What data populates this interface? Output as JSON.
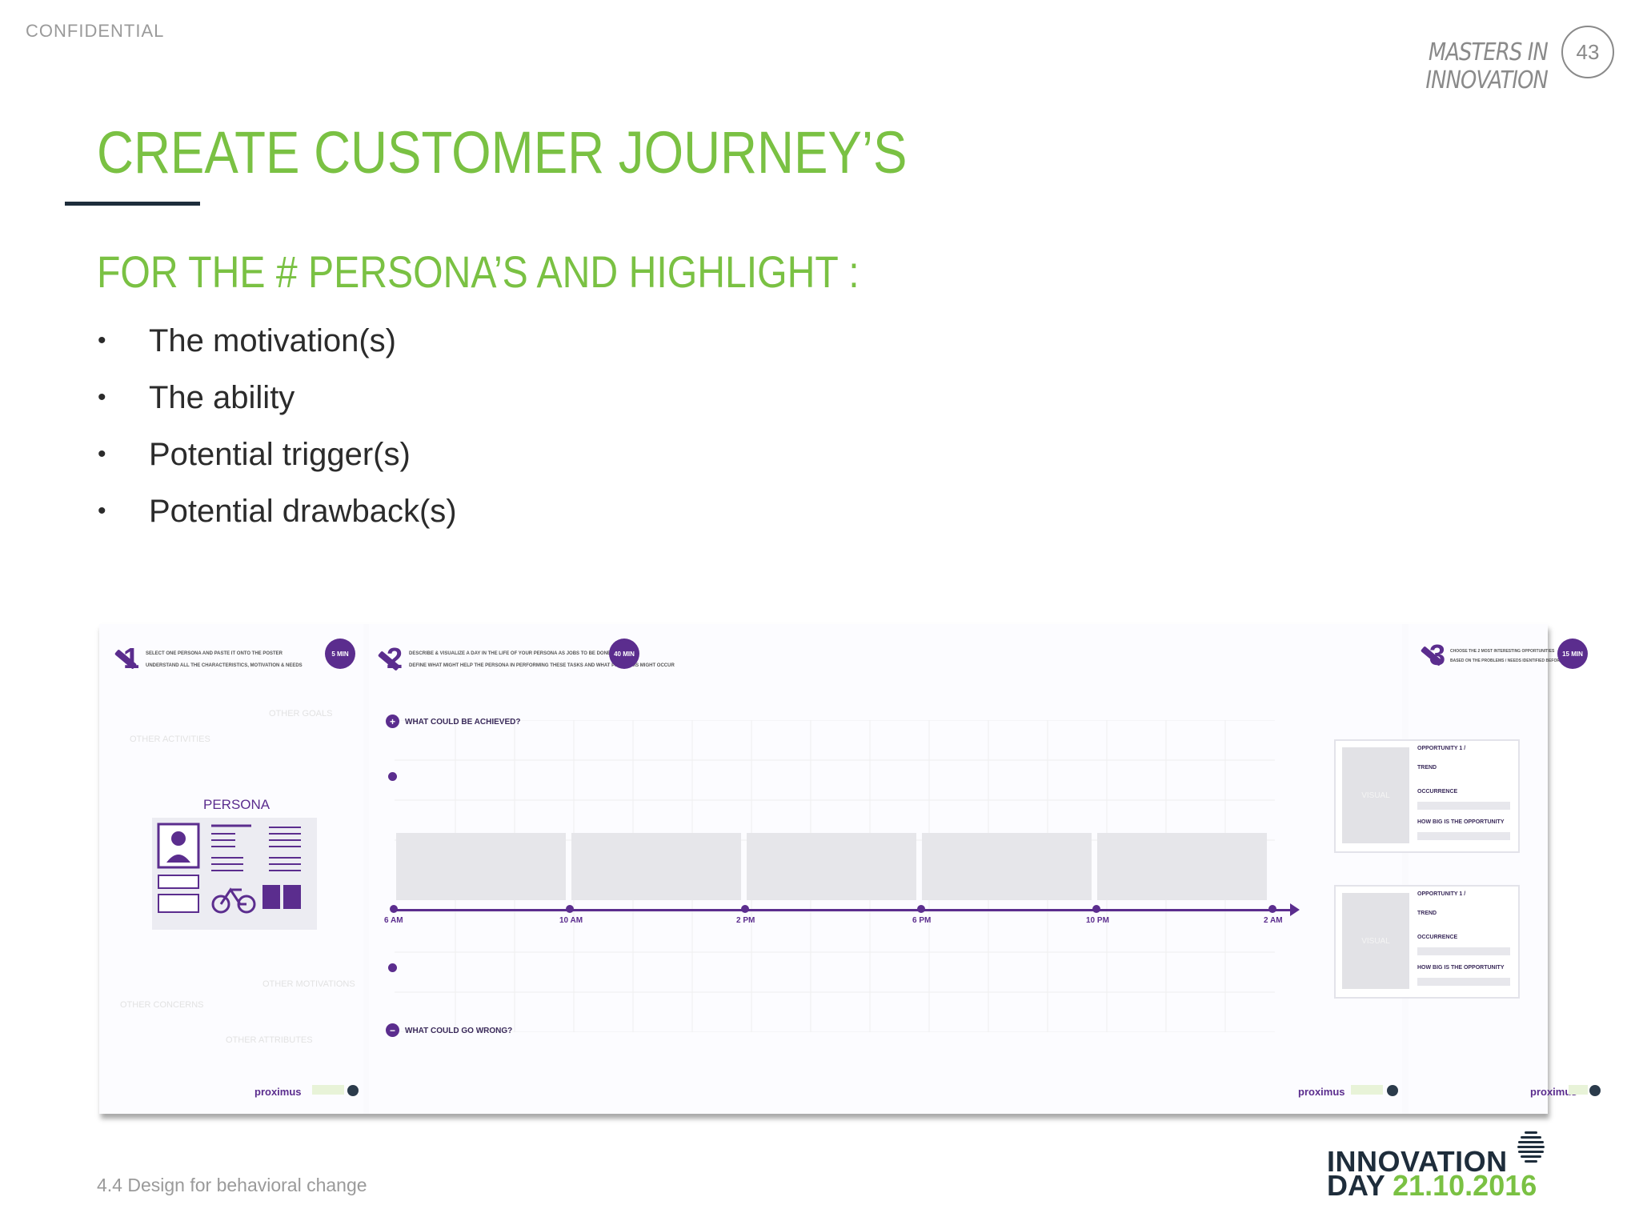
{
  "header": {
    "confidential": "CONFIDENTIAL",
    "brand": "MASTERS IN INNOVATION",
    "page_number": "43"
  },
  "slide": {
    "title": "CREATE CUSTOMER JOURNEY’S",
    "subtitle": "FOR THE # PERSONA’S AND HIGHLIGHT :",
    "bullets": [
      "The motivation(s)",
      "The ability",
      "Potential trigger(s)",
      "Potential drawback(s)"
    ]
  },
  "poster": {
    "step1": {
      "number": "1",
      "line1": "SELECT ONE PERSONA AND PASTE IT ONTO THE POSTER",
      "line2": "UNDERSTAND ALL THE CHARACTERISTICS, MOTIVATION & NEEDS",
      "badge": "5 MIN",
      "persona_label": "PERSONA",
      "faint": [
        "OTHER GOALS",
        "OTHER ACTIVITIES",
        "OTHER MOTIVATIONS",
        "OTHER CONCERNS",
        "OTHER ATTRIBUTES"
      ]
    },
    "step2": {
      "number": "2",
      "line1": "DESCRIBE & VISUALIZE A DAY IN THE LIFE OF YOUR PERSONA AS JOBS TO BE DONE",
      "line2": "DEFINE WHAT MIGHT HELP THE PERSONA IN PERFORMING THESE TASKS AND WHAT PROBLEMS MIGHT OCCUR",
      "badge": "40 MIN",
      "question_top": "WHAT COULD BE ACHIEVED?",
      "question_bottom": "WHAT COULD GO WRONG?",
      "plus": "+",
      "minus": "−",
      "times": [
        "6 AM",
        "10 AM",
        "2 PM",
        "6 PM",
        "10 PM",
        "2 AM"
      ]
    },
    "step3": {
      "number": "3",
      "line1": "CHOOSE THE 2 MOST INTERESTING OPPORTUNITIES",
      "line2": "BASED ON THE PROBLEMS / NEEDS IDENTIFIED BEFORE",
      "badge": "15 MIN",
      "cards": [
        {
          "visual": "VISUAL",
          "opportunity": "OPPORTUNITY 1 /",
          "trend": "TREND",
          "occurrence": "OCCURRENCE",
          "how_big": "HOW BIG IS THE OPPORTUNITY"
        },
        {
          "visual": "VISUAL",
          "opportunity": "OPPORTUNITY 1 /",
          "trend": "TREND",
          "occurrence": "OCCURRENCE",
          "how_big": "HOW BIG IS THE OPPORTUNITY"
        }
      ]
    },
    "logo_text": "proximus"
  },
  "footer": {
    "section": "4.4 Design for behavioral change",
    "event_line1": "INNOVATION",
    "event_day": "DAY",
    "event_date": "21.10.2016"
  },
  "colors": {
    "accent_green": "#7ac143",
    "navy": "#1e2d3b",
    "purple": "#5b2d8e"
  }
}
